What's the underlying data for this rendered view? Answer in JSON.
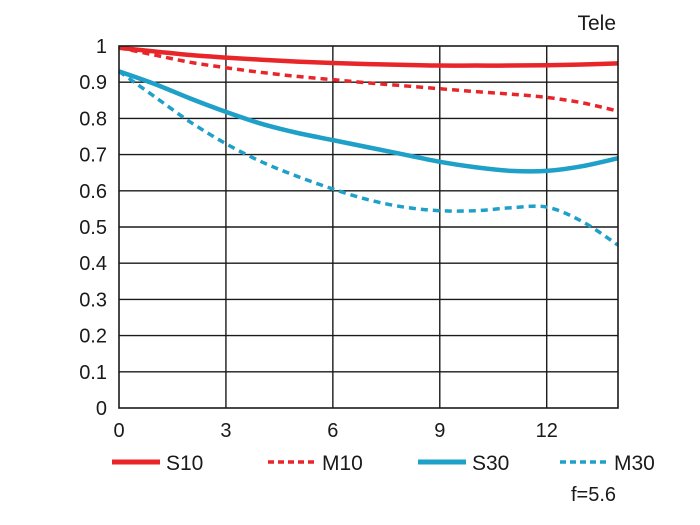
{
  "chart_data": {
    "type": "line",
    "title": "Tele",
    "note": "f=5.6",
    "xlim": [
      0,
      14
    ],
    "ylim": [
      0,
      1
    ],
    "x_ticks": [
      0,
      3,
      6,
      9,
      12
    ],
    "x_tick_labels": [
      "0",
      "3",
      "6",
      "9",
      "12"
    ],
    "y_ticks": [
      0,
      0.1,
      0.2,
      0.3,
      0.4,
      0.5,
      0.6,
      0.7,
      0.8,
      0.9,
      1
    ],
    "y_tick_labels": [
      "0",
      "0.1",
      "0.2",
      "0.3",
      "0.4",
      "0.5",
      "0.6",
      "0.7",
      "0.8",
      "0.9",
      "1"
    ],
    "grid": true,
    "legend_position": "bottom",
    "series": [
      {
        "name": "S10",
        "color": "#e8262a",
        "dashed": false,
        "x": [
          0,
          1,
          2,
          3,
          4,
          5,
          6,
          7,
          8,
          9,
          10,
          11,
          12,
          13,
          14
        ],
        "y": [
          0.995,
          0.985,
          0.975,
          0.968,
          0.962,
          0.957,
          0.953,
          0.95,
          0.948,
          0.946,
          0.946,
          0.946,
          0.947,
          0.949,
          0.952
        ]
      },
      {
        "name": "M10",
        "color": "#e8262a",
        "dashed": true,
        "x": [
          0,
          1,
          2,
          3,
          4,
          5,
          6,
          7,
          8,
          9,
          10,
          11,
          12,
          13,
          14
        ],
        "y": [
          0.995,
          0.975,
          0.955,
          0.94,
          0.927,
          0.916,
          0.907,
          0.898,
          0.89,
          0.882,
          0.874,
          0.867,
          0.858,
          0.843,
          0.82
        ]
      },
      {
        "name": "S30",
        "color": "#1ea0c8",
        "dashed": false,
        "x": [
          0,
          1,
          2,
          3,
          4,
          5,
          6,
          7,
          8,
          9,
          10,
          11,
          12,
          13,
          14
        ],
        "y": [
          0.93,
          0.895,
          0.855,
          0.818,
          0.785,
          0.76,
          0.74,
          0.72,
          0.7,
          0.68,
          0.665,
          0.655,
          0.655,
          0.668,
          0.69
        ]
      },
      {
        "name": "M30",
        "color": "#1ea0c8",
        "dashed": true,
        "x": [
          0,
          1,
          2,
          3,
          4,
          5,
          6,
          7,
          8,
          9,
          10,
          11,
          12,
          13,
          14
        ],
        "y": [
          0.93,
          0.86,
          0.79,
          0.73,
          0.68,
          0.64,
          0.605,
          0.575,
          0.555,
          0.545,
          0.545,
          0.553,
          0.555,
          0.515,
          0.45
        ]
      }
    ]
  }
}
